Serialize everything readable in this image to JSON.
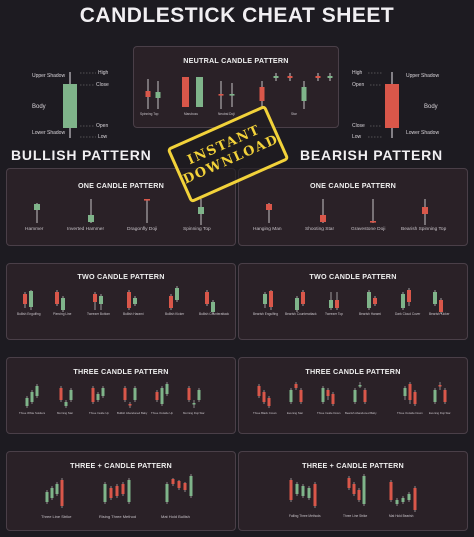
{
  "title": "CANDLESTICK CHEAT SHEET",
  "colors": {
    "bull": "#7fb48a",
    "bear": "#d9574a",
    "background": "#1d1b21",
    "panel": "#2a2127",
    "stamp": "#f2d23a"
  },
  "anatomy_left": {
    "high": "High",
    "upper_shadow": "Upper Shadow",
    "close": "Close",
    "body": "Body",
    "open": "Open",
    "lower_shadow": "Lower Shadow",
    "low": "Low"
  },
  "anatomy_right": {
    "high": "High",
    "upper_shadow": "Upper Shadow",
    "open": "Open",
    "body": "Body",
    "close": "Close",
    "lower_shadow": "Lower Shadow",
    "low": "Low"
  },
  "neutral": {
    "title": "NEUTRAL CANDLE PATTERN",
    "labels": [
      "Spinning Top",
      "Marubozu",
      "Neutral Doji",
      "Star"
    ]
  },
  "stamp": {
    "line1": "INSTANT",
    "line2": "DOWNLOAD"
  },
  "bullish": {
    "heading": "BULLISH PATTERN",
    "one": {
      "title": "ONE CANDLE PATTERN",
      "labels": [
        "Hammer",
        "Inverted Hammer",
        "Dragonfly Doji",
        "Spinning Top"
      ]
    },
    "two": {
      "title": "TWO CANDLE PATTERN",
      "labels": [
        "Bullish Engulfing",
        "Piercing Line",
        "Tweezer Bottom",
        "Bullish Harami",
        "Bullish Kicker",
        "Bullish Counterattack"
      ]
    },
    "three": {
      "title": "THREE  CANDLE PATTERN",
      "labels": [
        "Three White Soldiers",
        "Morning Star",
        "Three Inside Up",
        "Bullish Abandoned Baby",
        "Three Outside Up",
        "Morning Doji Star"
      ]
    },
    "threeplus": {
      "title": "THREE + CANDLE PATTERN",
      "labels": [
        "Three Line Strike",
        "Rising Three Method",
        "Mat Hold Bullish"
      ]
    }
  },
  "bearish": {
    "heading": "BEARISH PATTERN",
    "one": {
      "title": "ONE CANDLE PATTERN",
      "labels": [
        "Hanging Man",
        "Shooting Star",
        "Gravestone Doji",
        "Bearish Spinning Top"
      ]
    },
    "two": {
      "title": "TWO CANDLE PATTERN",
      "labels": [
        "Bearish Engulfing",
        "Bearish Counterattack",
        "Tweezer Top",
        "Bearish Harami",
        "Dark Cloud Cover",
        "Bearish Kicker"
      ]
    },
    "three": {
      "title": "THREE  CANDLE PATTERN",
      "labels": [
        "Three Black Crows",
        "Evening Star",
        "Three Inside Down",
        "Bearish Abandoned Baby",
        "Three Outside Down",
        "Evening Doji Star"
      ]
    },
    "threeplus": {
      "title": "THREE + CANDLE PATTERN",
      "labels": [
        "Falling Three Methods",
        "Three Line Strike",
        "Mat Hold Bearish"
      ]
    }
  }
}
